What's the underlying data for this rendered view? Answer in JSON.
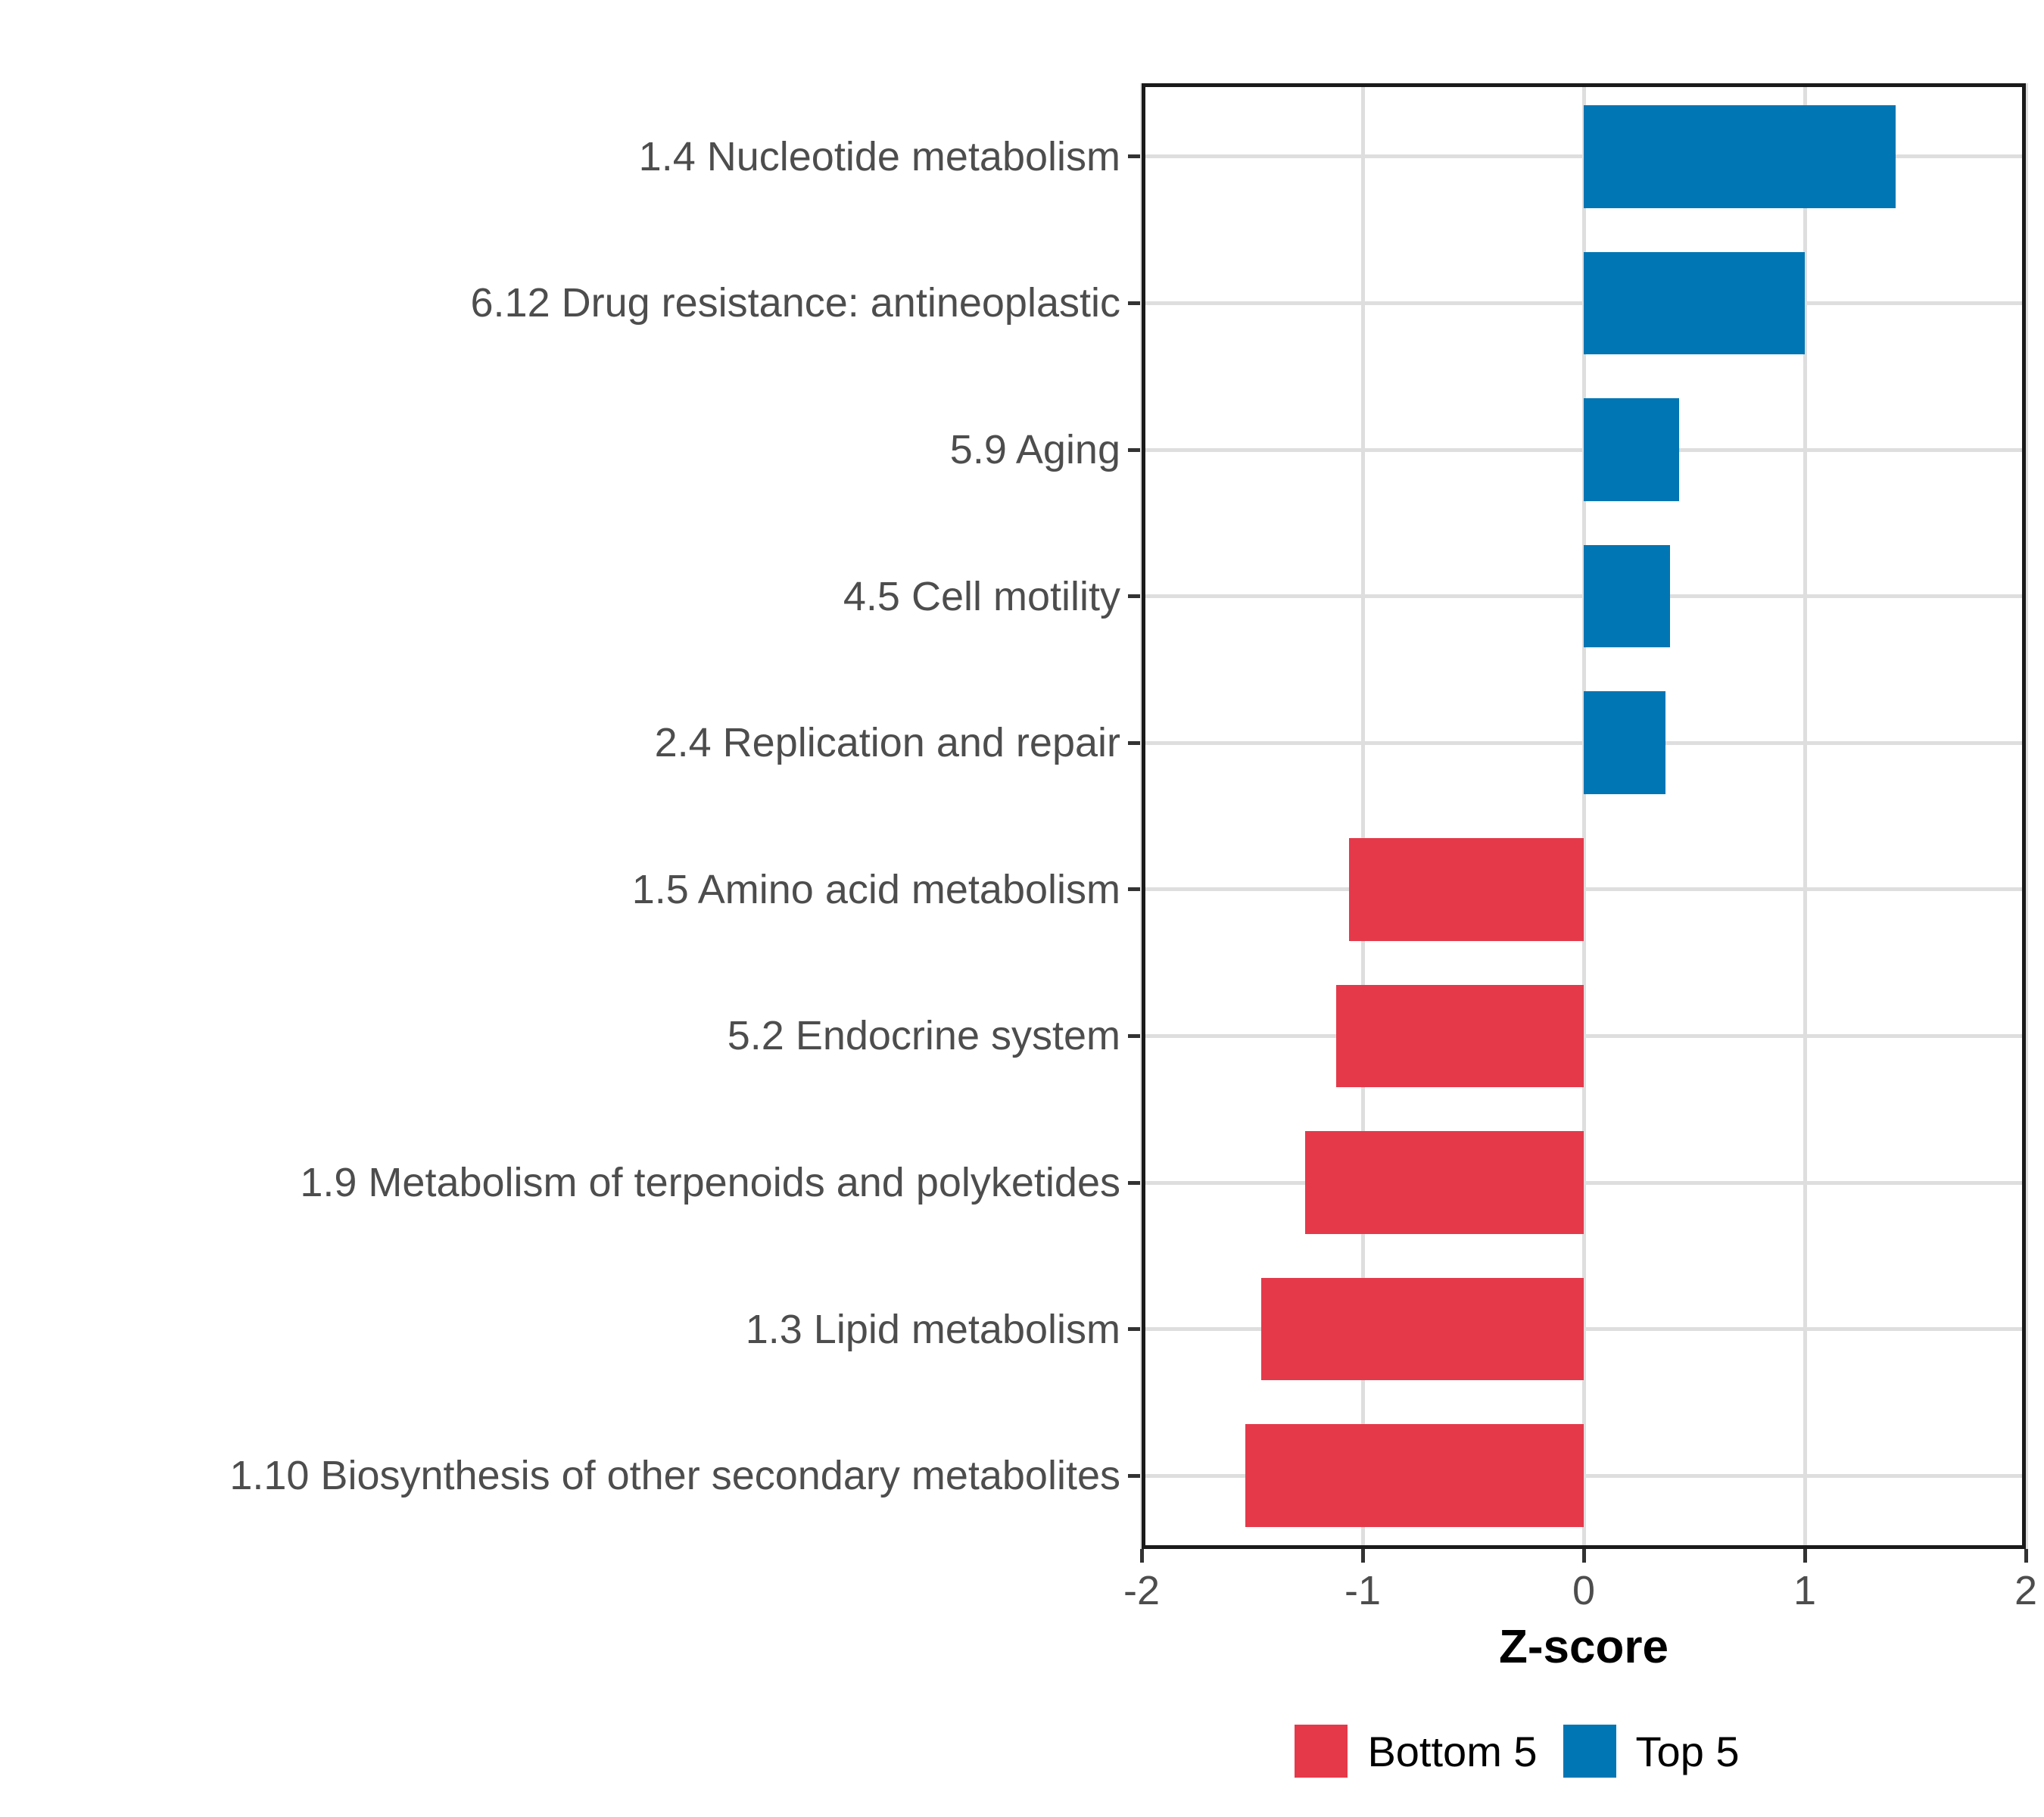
{
  "chart_data": {
    "type": "bar",
    "orientation": "horizontal",
    "title": "",
    "xlabel": "Z-score",
    "ylabel": "",
    "xlim": [
      -2,
      2
    ],
    "x_tick_values": [
      -2,
      -1,
      0,
      1,
      2
    ],
    "x_tick_labels": [
      "-2",
      "-1",
      "0",
      "1",
      "2"
    ],
    "grid": "major",
    "legend_position": "bottom",
    "categories": [
      "1.4 Nucleotide metabolism",
      "6.12 Drug resistance: antineoplastic",
      "5.9 Aging",
      "4.5 Cell motility",
      "2.4 Replication and repair",
      "1.5 Amino acid metabolism",
      "5.2 Endocrine system",
      "1.9 Metabolism of terpenoids and polyketides",
      "1.3 Lipid metabolism",
      "1.10 Biosynthesis of other secondary metabolites"
    ],
    "series": [
      {
        "name": "Z-score",
        "values": [
          1.41,
          1.0,
          0.43,
          0.39,
          0.37,
          -1.06,
          -1.12,
          -1.26,
          -1.46,
          -1.53
        ],
        "groups": [
          "Top 5",
          "Top 5",
          "Top 5",
          "Top 5",
          "Top 5",
          "Bottom 5",
          "Bottom 5",
          "Bottom 5",
          "Bottom 5",
          "Bottom 5"
        ]
      }
    ],
    "colors": {
      "Bottom 5": "#E5394A",
      "Top 5": "#0076B4"
    },
    "legend": [
      {
        "label": "Bottom 5",
        "color": "#E5394A"
      },
      {
        "label": "Top 5",
        "color": "#0076B4"
      }
    ]
  },
  "style_colors": {
    "panel_border": "#1a1a1a",
    "gridline": "#dedede",
    "axis_text": "#4d4d4d",
    "tick_mark": "#333333",
    "title_text": "#000000"
  }
}
